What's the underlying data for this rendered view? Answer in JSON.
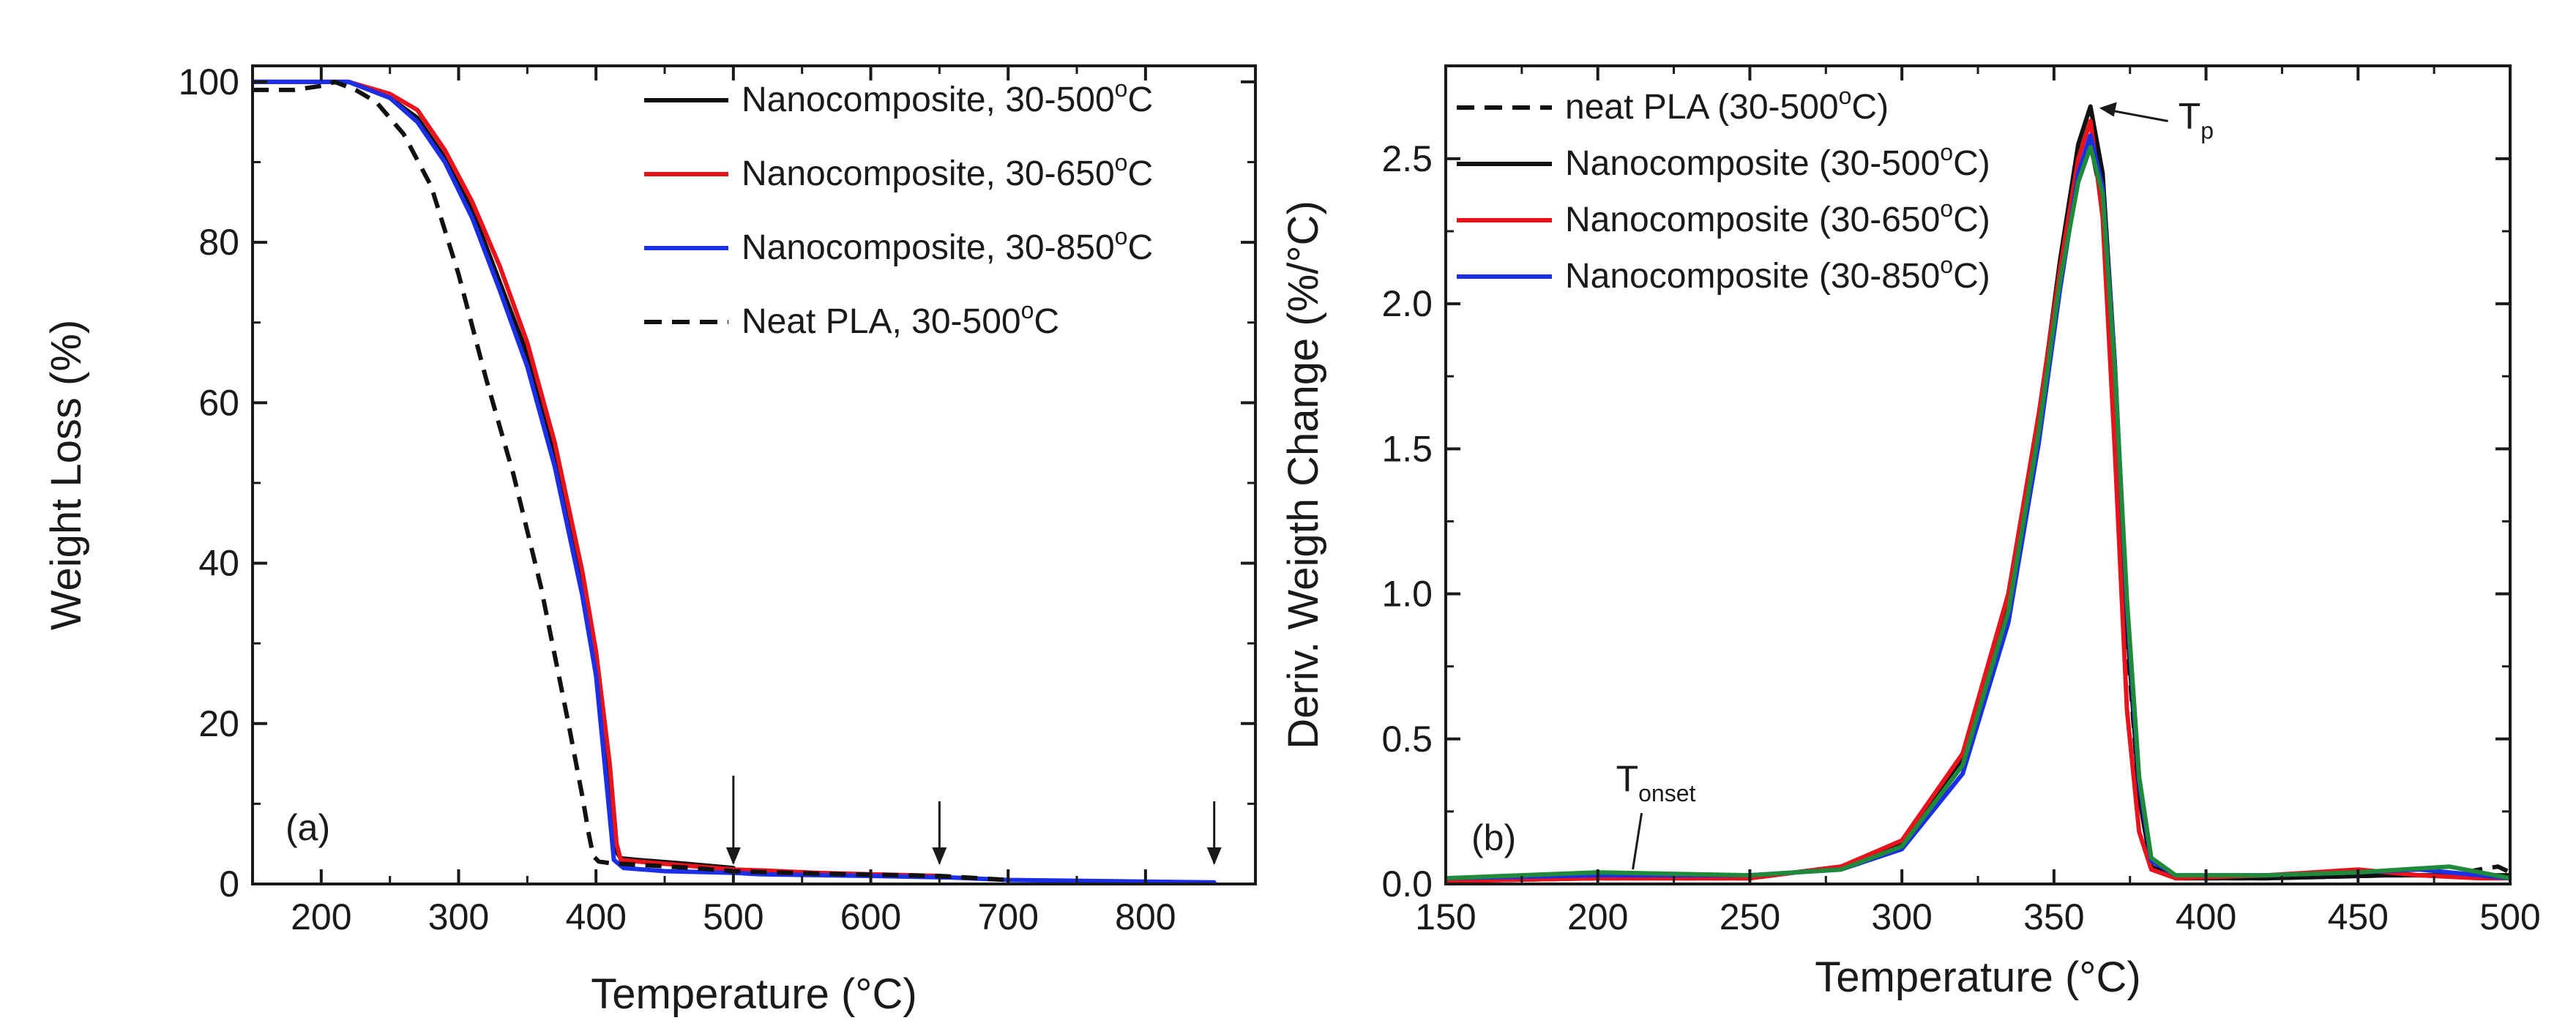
{
  "chart_data": [
    {
      "type": "line",
      "panel_label": "(a)",
      "title": "",
      "xlabel": "Temperature (°C)",
      "ylabel": "Weight Loss (%)",
      "xlim": [
        150,
        880
      ],
      "ylim": [
        0,
        102
      ],
      "xticks": [
        200,
        300,
        400,
        500,
        600,
        700,
        800
      ],
      "yticks": [
        0,
        20,
        40,
        60,
        80,
        100
      ],
      "xtick_labels": [
        "200",
        "300",
        "400",
        "500",
        "600",
        "700",
        "800"
      ],
      "ytick_labels": [
        "0",
        "20",
        "40",
        "60",
        "80",
        "100"
      ],
      "legend_position": "top-right",
      "series": [
        {
          "name": "Nanocomposite, 30-500°C",
          "legend_main": "Nanocomposite, 30-500",
          "legend_sup": "o",
          "legend_tail": "C",
          "color": "#111111",
          "dash": "solid",
          "x": [
            150,
            220,
            250,
            270,
            290,
            310,
            330,
            350,
            370,
            390,
            400,
            410,
            415,
            418,
            430,
            460,
            500
          ],
          "y": [
            100,
            100,
            98,
            95.5,
            90.5,
            84,
            75,
            66,
            54,
            38,
            28,
            14,
            4,
            3.2,
            3,
            2.6,
            2
          ]
        },
        {
          "name": "Nanocomposite, 30-650°C",
          "legend_main": "Nanocomposite, 30-650",
          "legend_sup": "o",
          "legend_tail": "C",
          "color": "#e8131b",
          "dash": "solid",
          "x": [
            150,
            220,
            250,
            270,
            290,
            310,
            330,
            350,
            370,
            390,
            400,
            410,
            415,
            418,
            430,
            500,
            520,
            560,
            600,
            650
          ],
          "y": [
            100,
            100,
            98.5,
            96.5,
            91.5,
            85,
            77,
            67.5,
            55,
            39,
            29,
            15,
            5,
            3,
            2.8,
            1.8,
            1.7,
            1.4,
            1.2,
            1
          ]
        },
        {
          "name": "Nanocomposite, 30-850°C",
          "legend_main": "Nanocomposite, 30-850",
          "legend_sup": "o",
          "legend_tail": "C",
          "color": "#1b2fe8",
          "dash": "solid",
          "x": [
            150,
            220,
            250,
            270,
            290,
            310,
            330,
            350,
            370,
            390,
            400,
            408,
            413,
            420,
            450,
            500,
            520,
            600,
            660,
            700,
            850
          ],
          "y": [
            100,
            100,
            98,
            95,
            90,
            83,
            74,
            64.5,
            52,
            36,
            26,
            12,
            3,
            2,
            1.6,
            1.4,
            1.2,
            1,
            0.8,
            0.5,
            0.2
          ]
        },
        {
          "name": "Neat PLA, 30-500°C",
          "legend_main": "Neat PLA, 30-500",
          "legend_sup": "o",
          "legend_tail": "C",
          "color": "#111111",
          "dash": "dashed",
          "x": [
            150,
            180,
            200,
            210,
            225,
            240,
            260,
            280,
            300,
            320,
            340,
            360,
            380,
            390,
            395,
            398,
            402,
            410,
            430,
            470,
            500,
            560,
            620,
            650,
            700
          ],
          "y": [
            99,
            99,
            99.5,
            100,
            99,
            97.5,
            93.5,
            87,
            76,
            63,
            51,
            37,
            20,
            11,
            6,
            3.5,
            2.8,
            2.6,
            2.4,
            2,
            1.6,
            1.3,
            1.1,
            1,
            0.5
          ]
        }
      ],
      "annotations": [
        {
          "type": "arrow",
          "x": 500,
          "text": ""
        },
        {
          "type": "arrow",
          "x": 650,
          "text": ""
        },
        {
          "type": "arrow",
          "x": 850,
          "text": ""
        }
      ]
    },
    {
      "type": "line",
      "panel_label": "(b)",
      "title": "",
      "xlabel": "Temperature (°C)",
      "ylabel": "Deriv. Weigth Change (%/°C)",
      "xlim": [
        150,
        500
      ],
      "ylim": [
        0,
        2.82
      ],
      "xticks": [
        150,
        200,
        250,
        300,
        350,
        400,
        450,
        500
      ],
      "yticks": [
        0,
        0.5,
        1.0,
        1.5,
        2.0,
        2.5
      ],
      "xtick_labels": [
        "150",
        "200",
        "250",
        "300",
        "350",
        "400",
        "450",
        "500"
      ],
      "ytick_labels": [
        "0.0",
        "0.5",
        "1.0",
        "1.5",
        "2.0",
        "2.5"
      ],
      "legend_position": "top-left",
      "series": [
        {
          "name": "neat PLA (30-500°C)",
          "legend_main": "neat PLA (30-500",
          "legend_sup": "o",
          "legend_tail": "C)",
          "color": "#111111",
          "dash": "dashed",
          "x": [
            150,
            200,
            250,
            280,
            300,
            320,
            335,
            345,
            352,
            358,
            362,
            366,
            370,
            374,
            378,
            382,
            390,
            420,
            460,
            480,
            490,
            496,
            500
          ],
          "y": [
            0.01,
            0.02,
            0.02,
            0.06,
            0.14,
            0.43,
            0.97,
            1.6,
            2.1,
            2.48,
            2.55,
            2.35,
            1.7,
            0.85,
            0.3,
            0.06,
            0.02,
            0.02,
            0.03,
            0.03,
            0.05,
            0.06,
            0.04
          ]
        },
        {
          "name": "Nanocomposite (30-500°C)",
          "legend_main": "Nanocomposite (30-500",
          "legend_sup": "o",
          "legend_tail": "C)",
          "color": "#111111",
          "dash": "solid",
          "x": [
            150,
            200,
            250,
            280,
            300,
            320,
            335,
            345,
            352,
            358,
            362,
            366,
            370,
            374,
            378,
            382,
            390,
            420,
            460,
            490,
            500
          ],
          "y": [
            0.01,
            0.02,
            0.02,
            0.06,
            0.14,
            0.43,
            0.97,
            1.6,
            2.15,
            2.55,
            2.68,
            2.45,
            1.8,
            0.9,
            0.3,
            0.06,
            0.02,
            0.02,
            0.03,
            0.03,
            0.03
          ]
        },
        {
          "name": "Nanocomposite (30-650°C)",
          "legend_main": "Nanocomposite (30-650",
          "legend_sup": "o",
          "legend_tail": "C)",
          "color": "#e8131b",
          "dash": "solid",
          "x": [
            150,
            200,
            250,
            280,
            300,
            320,
            335,
            345,
            352,
            358,
            362,
            366,
            370,
            374,
            378,
            382,
            390,
            420,
            450,
            470,
            490,
            500
          ],
          "y": [
            0.01,
            0.02,
            0.02,
            0.06,
            0.15,
            0.45,
            1.0,
            1.62,
            2.12,
            2.5,
            2.63,
            2.3,
            1.5,
            0.6,
            0.18,
            0.05,
            0.02,
            0.03,
            0.05,
            0.03,
            0.02,
            0.02
          ]
        },
        {
          "name": "Nanocomposite (30-850°C)",
          "legend_main": "Nanocomposite (30-850",
          "legend_sup": "o",
          "legend_tail": "C)",
          "color": "#1b2fe8",
          "dash": "solid",
          "x": [
            150,
            200,
            250,
            280,
            300,
            320,
            335,
            345,
            352,
            358,
            362,
            366,
            370,
            374,
            378,
            382,
            390,
            420,
            450,
            470,
            490,
            500
          ],
          "y": [
            0.02,
            0.03,
            0.03,
            0.05,
            0.12,
            0.38,
            0.9,
            1.52,
            2.05,
            2.45,
            2.58,
            2.4,
            1.8,
            0.95,
            0.35,
            0.08,
            0.03,
            0.03,
            0.04,
            0.05,
            0.03,
            0.02
          ]
        },
        {
          "name": "",
          "legend_main": "",
          "legend_sup": "",
          "legend_tail": "",
          "color": "#1f8a3a",
          "dash": "solid",
          "x": [
            150,
            200,
            250,
            280,
            300,
            320,
            335,
            345,
            352,
            358,
            362,
            366,
            370,
            374,
            378,
            382,
            390,
            420,
            450,
            480,
            490,
            500
          ],
          "y": [
            0.02,
            0.04,
            0.03,
            0.05,
            0.13,
            0.41,
            0.94,
            1.56,
            2.08,
            2.42,
            2.54,
            2.38,
            1.78,
            0.98,
            0.37,
            0.09,
            0.03,
            0.03,
            0.04,
            0.06,
            0.04,
            0.02
          ]
        }
      ],
      "annotations": [
        {
          "type": "label",
          "text": "T",
          "subscript": "p",
          "x": 362,
          "y": 2.68
        },
        {
          "type": "label",
          "text": "T",
          "subscript": "onset",
          "x": 212,
          "y": 0.03
        }
      ]
    }
  ]
}
